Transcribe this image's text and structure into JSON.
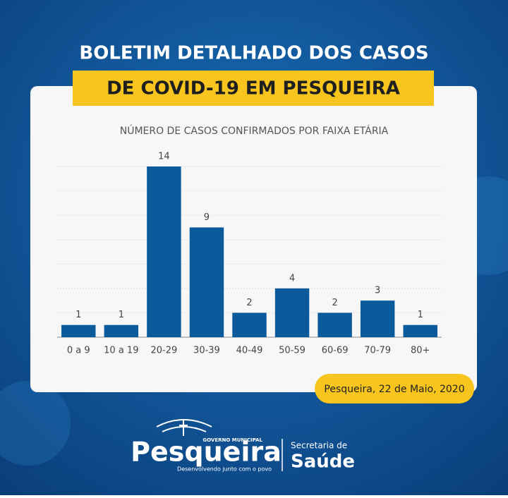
{
  "header": {
    "line1": "BOLETIM DETALHADO DOS CASOS",
    "line2": "DE COVID-19 EM PESQUEIRA"
  },
  "chart_data": {
    "type": "bar",
    "title": "NÚMERO DE CASOS CONFIRMADOS POR FAIXA ETÁRIA",
    "categories": [
      "0 a 9",
      "10 a 19",
      "20-29",
      "30-39",
      "40-49",
      "50-59",
      "60-69",
      "70-79",
      "80+"
    ],
    "values": [
      1,
      1,
      14,
      9,
      2,
      4,
      2,
      3,
      1
    ],
    "color": "#0b5a9c",
    "ylim": [
      0,
      14
    ],
    "yticks": [
      0,
      2,
      4,
      6,
      8,
      10,
      12,
      14
    ],
    "grid": true
  },
  "date": "Pesqueira, 22 de Maio, 2020",
  "logo": {
    "name": "Pesqueira",
    "gov": "GOVERNO MUNICIPAL",
    "slogan": "Desenvolvendo junto com o povo",
    "dept1": "Secretaria de",
    "dept2": "Saúde"
  }
}
